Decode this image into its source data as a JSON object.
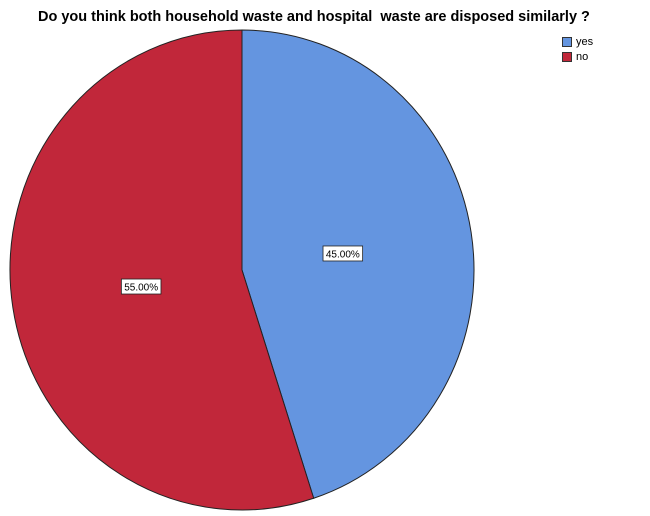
{
  "chart_data": {
    "type": "pie",
    "title": "Do you think both household waste and hospital  waste are disposed similarly ?",
    "categories": [
      "yes",
      "no"
    ],
    "values": [
      45.0,
      55.0
    ],
    "data_labels": [
      "45.00%",
      "55.00%"
    ],
    "colors": [
      "#6495e0",
      "#c1273a"
    ],
    "legend_position": "top-right"
  }
}
